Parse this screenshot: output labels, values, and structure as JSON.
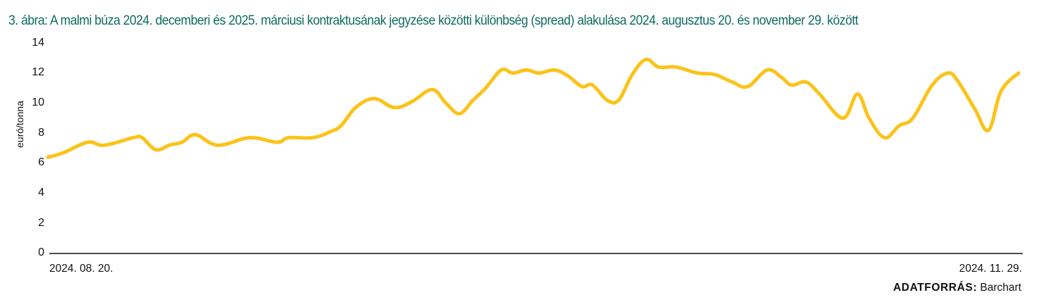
{
  "figure": {
    "title": "3.  ábra: A malmi búza 2024. decemberi és 2025. márciusi kontraktusának jegyzése közötti különbség (spread) alakulása 2024. augusztus 20. és november 29. között",
    "source_label": "ADATFORRÁS:",
    "source_value": "Barchart",
    "colors": {
      "title": "#0e6b63",
      "line": "#fbc31a",
      "axis": "#111111"
    }
  },
  "chart_data": {
    "type": "line",
    "title": "3.  ábra: A malmi búza 2024. decemberi és 2025. márciusi kontraktusának jegyzése közötti különbség (spread) alakulása 2024. augusztus 20. és november 29. között",
    "xlabel": "",
    "ylabel": "euró/tonna",
    "ylim": [
      0,
      14
    ],
    "yticks": [
      "0",
      "2",
      "4",
      "6",
      "8",
      "10",
      "12",
      "14"
    ],
    "x_tick_labels": [
      "2024. 08. 20.",
      "2024. 11. 29."
    ],
    "x_range": [
      "2024-08-20",
      "2024-11-29"
    ],
    "grid": false,
    "legend": null,
    "series": [
      {
        "name": "spread (euró/tonna)",
        "color": "#fbc31a",
        "x_frac": [
          0.0,
          0.016,
          0.041,
          0.058,
          0.088,
          0.097,
          0.111,
          0.125,
          0.138,
          0.152,
          0.175,
          0.208,
          0.236,
          0.248,
          0.273,
          0.291,
          0.302,
          0.317,
          0.336,
          0.357,
          0.375,
          0.396,
          0.41,
          0.424,
          0.438,
          0.451,
          0.467,
          0.479,
          0.493,
          0.506,
          0.522,
          0.536,
          0.55,
          0.561,
          0.576,
          0.588,
          0.602,
          0.616,
          0.629,
          0.647,
          0.669,
          0.687,
          0.705,
          0.721,
          0.741,
          0.756,
          0.766,
          0.781,
          0.795,
          0.819,
          0.834,
          0.846,
          0.862,
          0.877,
          0.891,
          0.911,
          0.927,
          0.937,
          0.955,
          0.969,
          0.982,
          1.0
        ],
        "values": [
          6.4,
          6.7,
          7.4,
          7.2,
          7.7,
          7.7,
          6.9,
          7.2,
          7.4,
          7.9,
          7.2,
          7.7,
          7.4,
          7.7,
          7.7,
          8.1,
          8.5,
          9.7,
          10.3,
          9.7,
          10.1,
          10.9,
          10.0,
          9.3,
          10.2,
          11.0,
          12.2,
          12.0,
          12.2,
          12.0,
          12.2,
          11.8,
          11.1,
          11.2,
          10.2,
          10.2,
          11.9,
          12.9,
          12.4,
          12.4,
          12.0,
          11.9,
          11.4,
          11.1,
          12.2,
          11.7,
          11.2,
          11.4,
          10.6,
          9.0,
          10.6,
          9.0,
          7.7,
          8.5,
          9.0,
          11.2,
          12.0,
          11.5,
          9.6,
          8.2,
          10.8,
          12.0
        ]
      }
    ]
  }
}
